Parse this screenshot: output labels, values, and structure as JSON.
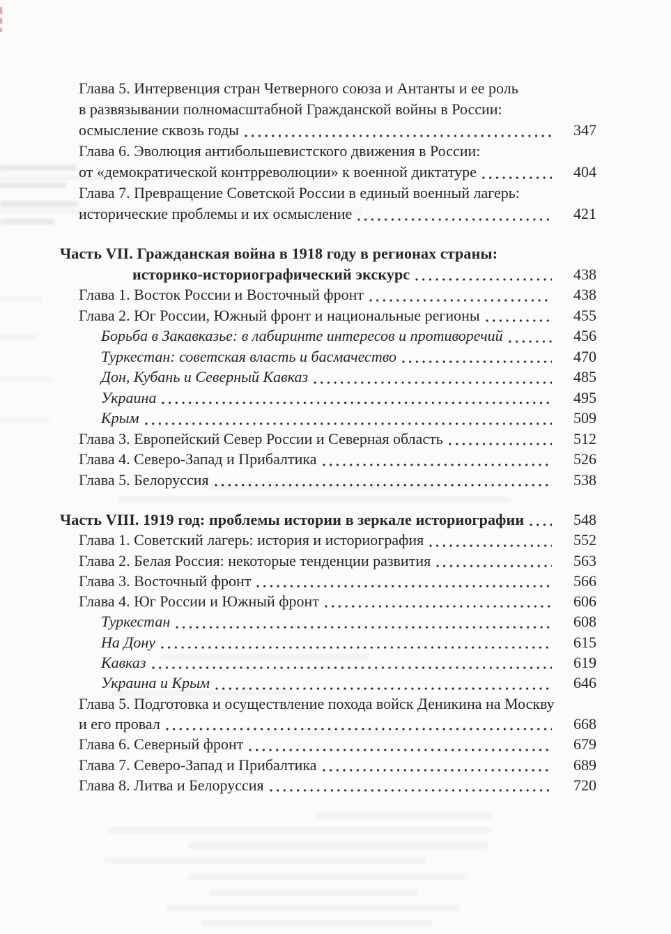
{
  "page": {
    "background_color": "#fbfbf9",
    "text_color": "#26262b",
    "kind": "book table of contents page (scanned)"
  },
  "toc": {
    "sections": [
      {
        "name": "part-6-tail",
        "lines": [
          {
            "text": "Глава 5. Интервенция стран Четверного союза и Антанты и ее роль",
            "variant": "chapter",
            "page": null
          },
          {
            "text": "в развязывании полномасштабной Гражданской войны в России:",
            "variant": "continuation",
            "page": null
          },
          {
            "text": "осмысление сквозь годы",
            "variant": "continuation",
            "page": "347"
          },
          {
            "text": "Глава 6. Эволюция антибольшевистского движения в России:",
            "variant": "chapter",
            "page": null
          },
          {
            "text": "от «демократической контрреволюции» к военной диктатуре",
            "variant": "continuation",
            "page": "404"
          },
          {
            "text": "Глава 7. Превращение Советской России в единый военный лагерь:",
            "variant": "chapter",
            "page": null
          },
          {
            "text": "исторические проблемы и их осмысление",
            "variant": "continuation",
            "page": "421"
          }
        ]
      },
      {
        "name": "part-7",
        "lines": [
          {
            "text": "Часть VII. Гражданская война в 1918 году в регионах страны:",
            "variant": "part",
            "page": null
          },
          {
            "text": "историко-историографический экскурс",
            "variant": "part-continuation",
            "page": "438"
          },
          {
            "text": "Глава 1. Восток России и Восточный фронт",
            "variant": "chapter",
            "page": "438"
          },
          {
            "text": "Глава 2. Юг России, Южный фронт и национальные регионы",
            "variant": "chapter",
            "page": "455"
          },
          {
            "text": "Борьба в Закавказье: в лабиринте интересов и противоречий",
            "variant": "sub",
            "page": "456"
          },
          {
            "text": "Туркестан: советская власть и басмачество",
            "variant": "sub",
            "page": "470"
          },
          {
            "text": "Дон, Кубань и Северный Кавказ",
            "variant": "sub",
            "page": "485"
          },
          {
            "text": "Украина",
            "variant": "sub",
            "page": "495"
          },
          {
            "text": "Крым",
            "variant": "sub",
            "page": "509"
          },
          {
            "text": "Глава 3. Европейский Север России и Северная область",
            "variant": "chapter",
            "page": "512"
          },
          {
            "text": "Глава 4. Северо-Запад и Прибалтика",
            "variant": "chapter",
            "page": "526"
          },
          {
            "text": "Глава 5. Белоруссия",
            "variant": "chapter",
            "page": "538"
          }
        ]
      },
      {
        "name": "part-8",
        "lines": [
          {
            "text": "Часть VIII. 1919 год: проблемы истории в зеркале историографии",
            "variant": "part",
            "page": "548"
          },
          {
            "text": "Глава 1. Советский лагерь: история и историография",
            "variant": "chapter",
            "page": "552"
          },
          {
            "text": "Глава 2. Белая Россия: некоторые тенденции развития",
            "variant": "chapter",
            "page": "563"
          },
          {
            "text": "Глава 3. Восточный фронт",
            "variant": "chapter",
            "page": "566"
          },
          {
            "text": "Глава 4. Юг России и Южный фронт",
            "variant": "chapter",
            "page": "606"
          },
          {
            "text": "Туркестан",
            "variant": "sub",
            "page": "608"
          },
          {
            "text": "На Дону",
            "variant": "sub",
            "page": "615"
          },
          {
            "text": "Кавказ",
            "variant": "sub",
            "page": "619"
          },
          {
            "text": "Украина и Крым",
            "variant": "sub",
            "page": "646"
          },
          {
            "text": "Глава 5. Подготовка и осуществление похода войск Деникина на Москву",
            "variant": "chapter",
            "page": null
          },
          {
            "text": "и его провал",
            "variant": "continuation",
            "page": "668"
          },
          {
            "text": "Глава 6. Северный фронт",
            "variant": "chapter",
            "page": "679"
          },
          {
            "text": "Глава 7. Северо-Запад и Прибалтика",
            "variant": "chapter",
            "page": "689"
          },
          {
            "text": "Глава 8. Литва и Белоруссия",
            "variant": "chapter",
            "page": "720"
          }
        ]
      }
    ]
  }
}
